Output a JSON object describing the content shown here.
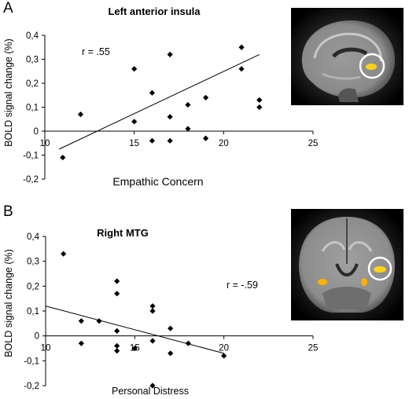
{
  "chart_data": [
    {
      "panel": "A",
      "type": "scatter",
      "title": "Left anterior insula",
      "xlabel": "Empathic Concern",
      "ylabel": "BOLD signal change (%)",
      "xlim": [
        10,
        25
      ],
      "ylim": [
        -0.2,
        0.4
      ],
      "x_ticks": [
        "10",
        "15",
        "20",
        "25"
      ],
      "y_ticks": [
        "0,4",
        "0,3",
        "0,2",
        "0,1",
        "0",
        "-0,1",
        "-0,2"
      ],
      "annotation": "r = .55",
      "points": [
        {
          "x": 11,
          "y": -0.11
        },
        {
          "x": 12,
          "y": 0.07
        },
        {
          "x": 15,
          "y": 0.26
        },
        {
          "x": 15,
          "y": 0.04
        },
        {
          "x": 16,
          "y": 0.16
        },
        {
          "x": 16,
          "y": -0.04
        },
        {
          "x": 17,
          "y": 0.32
        },
        {
          "x": 17,
          "y": 0.06
        },
        {
          "x": 17,
          "y": -0.04
        },
        {
          "x": 18,
          "y": 0.11
        },
        {
          "x": 18,
          "y": 0.01
        },
        {
          "x": 19,
          "y": 0.14
        },
        {
          "x": 19,
          "y": -0.03
        },
        {
          "x": 21,
          "y": 0.35
        },
        {
          "x": 21,
          "y": 0.26
        },
        {
          "x": 22,
          "y": 0.13
        },
        {
          "x": 22,
          "y": 0.1
        }
      ],
      "fit_line": [
        {
          "x": 10.8,
          "y": -0.075
        },
        {
          "x": 22,
          "y": 0.32
        }
      ]
    },
    {
      "panel": "B",
      "type": "scatter",
      "title": "Right MTG",
      "xlabel": "Personal Distress",
      "ylabel": "BOLD signal change (%)",
      "xlim": [
        10,
        25
      ],
      "ylim": [
        -0.2,
        0.4
      ],
      "x_ticks": [
        "10",
        "15",
        "20",
        "25"
      ],
      "y_ticks": [
        "0,4",
        "0,3",
        "0,2",
        "0,1",
        "0",
        "-0,1",
        "-0,2"
      ],
      "annotation": "r = -.59",
      "points": [
        {
          "x": 11,
          "y": 0.33
        },
        {
          "x": 12,
          "y": 0.06
        },
        {
          "x": 12,
          "y": -0.03
        },
        {
          "x": 13,
          "y": 0.06
        },
        {
          "x": 14,
          "y": 0.22
        },
        {
          "x": 14,
          "y": 0.17
        },
        {
          "x": 14,
          "y": 0.02
        },
        {
          "x": 14,
          "y": -0.04
        },
        {
          "x": 14,
          "y": -0.06
        },
        {
          "x": 15,
          "y": -0.05
        },
        {
          "x": 16,
          "y": 0.12
        },
        {
          "x": 16,
          "y": 0.1
        },
        {
          "x": 16,
          "y": -0.02
        },
        {
          "x": 16,
          "y": -0.2
        },
        {
          "x": 17,
          "y": 0.03
        },
        {
          "x": 17,
          "y": -0.07
        },
        {
          "x": 18,
          "y": -0.03
        },
        {
          "x": 20,
          "y": -0.08
        }
      ],
      "fit_line": [
        {
          "x": 10,
          "y": 0.12
        },
        {
          "x": 20,
          "y": -0.07
        }
      ]
    }
  ],
  "panels": [
    {
      "letter": "A",
      "brain_view": "sagittal",
      "highlight_color": "#ffd21a",
      "circle_color": "#ffffff"
    },
    {
      "letter": "B",
      "brain_view": "coronal",
      "highlight_color": "#ffb000",
      "circle_color": "#ffffff"
    }
  ]
}
